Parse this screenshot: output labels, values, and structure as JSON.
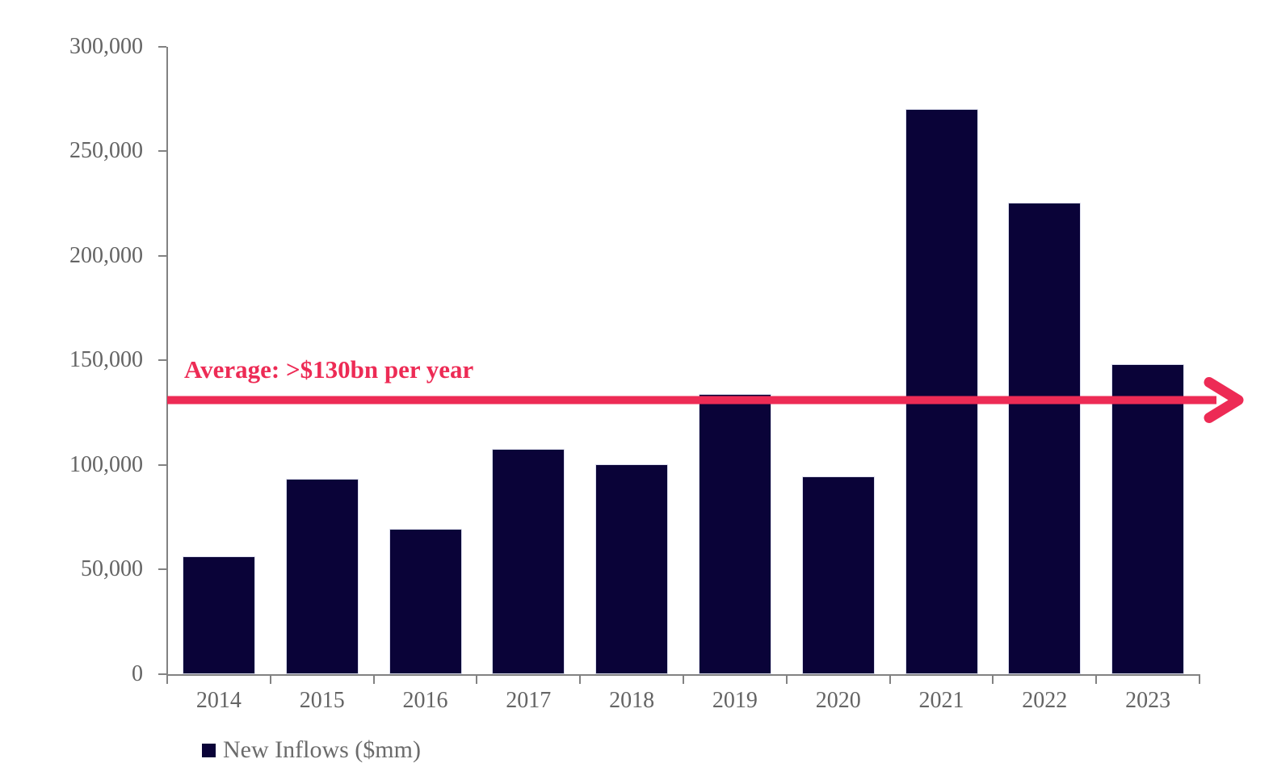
{
  "chart_data": {
    "type": "bar",
    "title": "",
    "xlabel": "",
    "ylabel": "",
    "categories": [
      "2014",
      "2015",
      "2016",
      "2017",
      "2018",
      "2019",
      "2020",
      "2021",
      "2022",
      "2023"
    ],
    "series": [
      {
        "name": "New Inflows ($mm)",
        "values": [
          56500,
          93500,
          69500,
          107500,
          100500,
          134000,
          94500,
          270000,
          225500,
          148000
        ]
      }
    ],
    "ylim": [
      0,
      300000
    ],
    "ytick_step": 50000,
    "ytick_labels": [
      "0",
      "50,000",
      "100,000",
      "150,000",
      "200,000",
      "250,000",
      "300,000"
    ],
    "grid": false,
    "legend": {
      "position": "bottom-left",
      "label": "New Inflows ($mm)"
    },
    "annotation": {
      "text": "Average: >$130bn per year",
      "value": 131000,
      "style": "horizontal-arrow-right"
    },
    "colors": {
      "bar": "#0a0338",
      "annotation": "#ed2b55",
      "axis": "#828282",
      "tick_labels": "#646464"
    }
  }
}
